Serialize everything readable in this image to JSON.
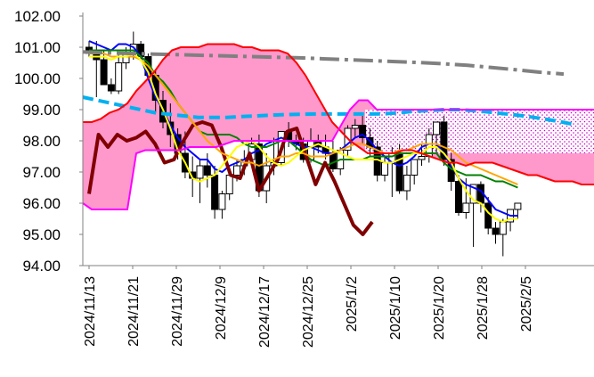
{
  "chart_data": {
    "type": "candlestick",
    "title": "",
    "xlabel": "",
    "ylabel": "",
    "ylim": [
      94.0,
      102.0
    ],
    "y_ticks": [
      "94.00",
      "95.00",
      "96.00",
      "97.00",
      "98.00",
      "99.00",
      "100.00",
      "101.00",
      "102.00"
    ],
    "x_ticks": [
      "2024/11/13",
      "2024/11/21",
      "2024/11/29",
      "2024/12/9",
      "2024/12/17",
      "2024/12/25",
      "2025/1/2",
      "2025/1/10",
      "2025/1/20",
      "2025/1/28",
      "2025/2/5"
    ],
    "grid": false,
    "legend": "none",
    "candles": {
      "up_color": "#ffffff",
      "down_color": "#000000",
      "open": [
        101.0,
        100.9,
        100.6,
        99.8,
        99.6,
        100.5,
        100.8,
        101.1,
        100.7,
        100.1,
        99.3,
        98.6,
        98.2,
        97.6,
        97.0,
        96.8,
        97.2,
        96.9,
        95.8,
        96.3,
        96.9,
        97.2,
        97.4,
        97.9,
        96.4,
        97.2,
        97.3,
        98.3,
        98.0,
        97.9,
        97.4,
        98.0,
        97.8,
        97.6,
        97.1,
        97.7,
        98.4,
        98.5,
        98.1,
        97.8,
        96.9,
        97.3,
        97.6,
        96.4,
        96.9,
        97.4,
        97.5,
        98.2,
        98.6,
        97.4,
        96.7,
        95.7,
        96.0,
        96.6,
        96.0,
        95.2,
        95.0,
        95.4,
        95.8
      ],
      "high": [
        101.2,
        101.2,
        100.9,
        100.0,
        100.8,
        101.0,
        101.5,
        101.2,
        100.8,
        100.3,
        99.6,
        99.2,
        98.4,
        98.3,
        97.5,
        97.4,
        97.6,
        97.2,
        96.4,
        96.9,
        97.4,
        97.7,
        98.1,
        98.2,
        97.6,
        98.1,
        98.3,
        98.6,
        98.2,
        98.1,
        98.4,
        98.2,
        98.2,
        98.0,
        97.8,
        98.5,
        98.7,
        98.8,
        98.4,
        98.0,
        97.5,
        97.8,
        97.9,
        97.2,
        97.4,
        97.9,
        98.4,
        98.5,
        98.8,
        97.6,
        96.9,
        96.8,
        96.4,
        96.7,
        96.2,
        95.4,
        95.5,
        95.7,
        96.0
      ],
      "low": [
        100.7,
        99.4,
        99.8,
        99.5,
        99.5,
        100.3,
        100.6,
        100.6,
        100.0,
        98.9,
        98.4,
        97.8,
        97.4,
        96.8,
        96.2,
        96.0,
        96.5,
        95.5,
        95.5,
        96.1,
        96.7,
        96.9,
        97.2,
        96.2,
        96.0,
        96.9,
        97.2,
        97.8,
        97.7,
        97.3,
        97.3,
        97.6,
        97.4,
        97.0,
        96.9,
        97.5,
        98.1,
        97.9,
        97.5,
        96.7,
        96.7,
        96.2,
        96.3,
        96.1,
        96.6,
        97.2,
        97.3,
        97.6,
        97.2,
        96.4,
        95.6,
        95.5,
        94.6,
        95.7,
        95.0,
        94.7,
        94.3,
        95.1,
        95.5
      ],
      "close": [
        100.8,
        100.6,
        99.8,
        99.6,
        100.5,
        100.8,
        101.1,
        100.7,
        100.1,
        99.3,
        98.6,
        98.2,
        97.6,
        97.0,
        96.8,
        97.2,
        96.9,
        95.8,
        96.3,
        96.9,
        97.2,
        97.4,
        97.9,
        96.4,
        97.2,
        97.3,
        98.3,
        98.0,
        97.9,
        97.4,
        98.0,
        97.8,
        97.6,
        97.1,
        97.7,
        98.4,
        98.5,
        98.1,
        97.8,
        96.9,
        97.3,
        97.6,
        96.4,
        96.9,
        97.4,
        97.5,
        98.2,
        98.6,
        97.4,
        96.7,
        95.7,
        96.0,
        96.6,
        96.0,
        95.2,
        95.0,
        95.4,
        95.8,
        96.0
      ]
    },
    "series": [
      {
        "color": "#0000ff",
        "style": "solid",
        "values": [
          101.2,
          101.1,
          101.0,
          100.9,
          101.1,
          101.1,
          101.0,
          100.7,
          100.0,
          99.4,
          99.0,
          98.5,
          98.1,
          97.8,
          97.6,
          97.4,
          97.4,
          97.1,
          97.0,
          97.2,
          97.3,
          97.4,
          97.6,
          97.7,
          97.9,
          98.0,
          98.1,
          98.0,
          97.9,
          97.8,
          97.8,
          97.7,
          97.6,
          97.6,
          97.7,
          97.9,
          98.1,
          98.2,
          98.0,
          97.7,
          97.5,
          97.3,
          97.2,
          97.3,
          97.5,
          97.8,
          97.9,
          97.9,
          97.6,
          97.2,
          96.8,
          96.6,
          96.5,
          96.4,
          96.1,
          95.8,
          95.7,
          95.6,
          95.6
        ]
      },
      {
        "color": "#008000",
        "style": "solid",
        "values": [
          100.9,
          100.9,
          100.9,
          100.9,
          100.9,
          100.9,
          100.9,
          100.7,
          100.5,
          100.1,
          99.9,
          99.6,
          99.2,
          98.9,
          98.6,
          98.3,
          98.2,
          98.2,
          98.2,
          98.2,
          98.1,
          97.9,
          97.8,
          97.8,
          97.8,
          97.9,
          98.0,
          98.0,
          97.8,
          97.6,
          97.4,
          97.3,
          97.2,
          97.3,
          97.4,
          97.4,
          97.4,
          97.4,
          97.5,
          97.5,
          97.5,
          97.5,
          97.6,
          97.6,
          97.6,
          97.6,
          97.6,
          97.6,
          97.3,
          97.1,
          97.0,
          96.9,
          96.9,
          96.9,
          96.8,
          96.7,
          96.7,
          96.6,
          96.5
        ]
      },
      {
        "color": "#800000",
        "style": "thick",
        "values": [
          96.3,
          98.2,
          97.8,
          98.2,
          98.0,
          98.1,
          98.3,
          97.9,
          97.3,
          97.4,
          98.0,
          98.5,
          98.6,
          98.5,
          97.8,
          96.9,
          96.8,
          97.6,
          96.4,
          96.9,
          97.4,
          98.3,
          98.4,
          97.5,
          96.6,
          97.3,
          96.7,
          96.0,
          95.3,
          95.0,
          95.4
        ]
      },
      {
        "color": "#ffa500",
        "style": "solid",
        "values": [
          100.8,
          100.8,
          100.8,
          100.7,
          100.7,
          100.7,
          100.7,
          100.6,
          100.4,
          100.1,
          99.8,
          99.5,
          99.2,
          98.9,
          98.6,
          98.3,
          98.0,
          97.8,
          97.6,
          97.5,
          97.4,
          97.3,
          97.3,
          97.2,
          97.3,
          97.4,
          97.5,
          97.5,
          97.6,
          97.6,
          97.5,
          97.5,
          97.5,
          97.6,
          97.7,
          97.8,
          97.9,
          97.9,
          97.8,
          97.7,
          97.6,
          97.6,
          97.7,
          97.7,
          97.8,
          97.9,
          97.9,
          97.9,
          97.8,
          97.7,
          97.5,
          97.3,
          97.2,
          97.1,
          97.0,
          96.9,
          96.8,
          96.7,
          96.6
        ]
      },
      {
        "color": "#ffff00",
        "style": "solid",
        "values": [
          100.7,
          100.7,
          100.7,
          100.6,
          100.7,
          100.7,
          100.8,
          100.6,
          100.2,
          99.5,
          99.0,
          98.4,
          97.7,
          97.3,
          96.8,
          96.7,
          96.8,
          96.9,
          97.2,
          97.5,
          97.8,
          97.9,
          98.0,
          97.8,
          97.5,
          97.3,
          97.2,
          97.3,
          97.5,
          97.7,
          97.8,
          97.9,
          97.8,
          97.7,
          97.6,
          97.5,
          97.4,
          97.4,
          97.4,
          97.4,
          97.3,
          97.3,
          97.4,
          97.5,
          97.6,
          97.6,
          97.8,
          97.8,
          97.6,
          97.3,
          96.8,
          96.4,
          96.1,
          96.0,
          95.7,
          95.5,
          95.4,
          95.5,
          95.5
        ]
      },
      {
        "color": "#00b0f0",
        "style": "dashed",
        "values": [
          99.4,
          99.3,
          99.2,
          99.1,
          99.0,
          98.9,
          98.85,
          98.8,
          98.75,
          98.75,
          98.75,
          98.78,
          98.8,
          98.82,
          98.84,
          98.85,
          98.86,
          98.86,
          98.86,
          98.86,
          98.86,
          98.87,
          98.9,
          98.95,
          98.97,
          99.0,
          99.0,
          98.97,
          98.93,
          98.88,
          98.83,
          98.77,
          98.7,
          98.62,
          98.53
        ]
      },
      {
        "color": "#808080",
        "style": "dash-dot",
        "values": [
          100.85,
          100.82,
          100.8,
          100.78,
          100.76,
          100.74,
          100.72,
          100.7,
          100.68,
          100.66,
          100.63,
          100.6,
          100.57,
          100.54,
          100.51,
          100.47,
          100.42,
          100.35,
          100.28,
          100.2,
          100.14
        ]
      },
      {
        "color": "#ff0000",
        "style": "solid",
        "values": [
          98.6,
          98.6,
          98.7,
          98.9,
          99.0,
          99.2,
          99.6,
          99.9,
          100.2,
          100.6,
          100.9,
          101.0,
          101.0,
          101.0,
          101.1,
          101.1,
          101.1,
          101.1,
          101.0,
          101.0,
          100.9,
          100.9,
          100.9,
          100.8,
          100.5,
          100.1,
          99.6,
          99.1,
          98.6,
          98.3,
          98.0,
          97.8,
          97.6,
          97.6,
          97.6,
          97.6,
          97.7,
          97.7,
          97.6,
          97.5,
          97.4,
          97.3,
          97.3,
          97.2,
          97.3,
          97.3,
          97.3,
          97.2,
          97.1,
          97.0,
          96.9,
          96.9,
          96.8,
          96.7,
          96.7,
          96.7,
          96.6,
          96.6,
          96.6
        ]
      },
      {
        "color": "#ff00ff",
        "style": "solid",
        "values": [
          96.0,
          95.8,
          95.8,
          95.8,
          95.8,
          95.8,
          97.6,
          97.7,
          97.7,
          97.7,
          97.7,
          97.7,
          97.8,
          97.8,
          97.8,
          97.8,
          97.9,
          98.0,
          98.0,
          98.0,
          98.0,
          98.0,
          98.0,
          98.0,
          98.0,
          98.0,
          98.0,
          98.0,
          98.0,
          98.5,
          99.0,
          99.3,
          99.3,
          99.0,
          99.0,
          99.0,
          99.0,
          99.0,
          99.0,
          99.0,
          99.0,
          99.0,
          99.0,
          99.0,
          99.0,
          99.0,
          99.0,
          99.0,
          99.0,
          99.0,
          99.0,
          99.0,
          99.0,
          99.0,
          99.0,
          99.0,
          99.0,
          99.0,
          99.0,
          99.0,
          99.0,
          99.0,
          99.0,
          99.0,
          99.0,
          99.0
        ]
      }
    ],
    "cloud_colors": {
      "fill": "#ff99cc",
      "dotted": "#cc00cc",
      "background": "#ffffff"
    }
  }
}
